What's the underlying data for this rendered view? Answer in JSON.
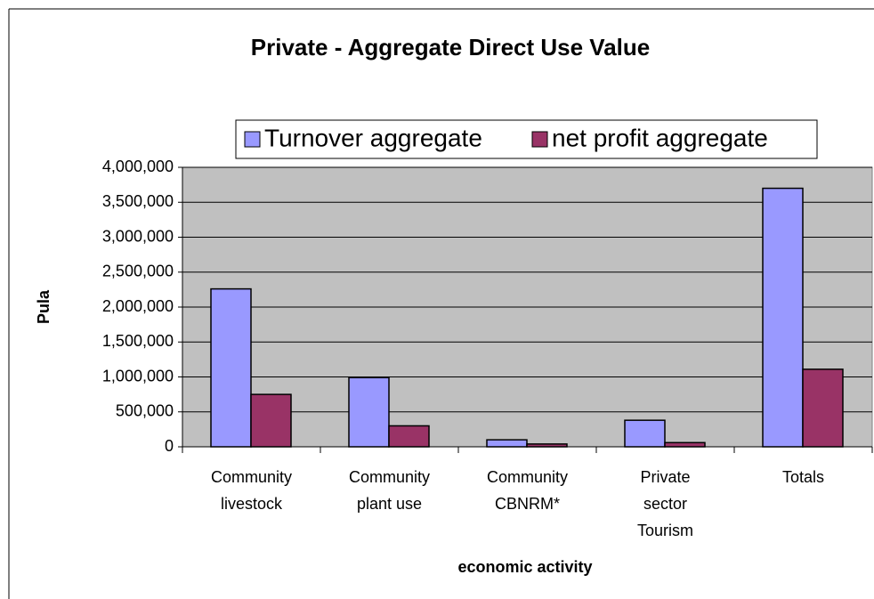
{
  "chart_data": {
    "type": "bar",
    "title": "Private - Aggregate Direct Use Value",
    "xlabel": "economic activity",
    "ylabel": "Pula",
    "categories": [
      [
        "Community",
        "livestock"
      ],
      [
        "Community",
        "plant use"
      ],
      [
        "Community",
        "CBNRM*"
      ],
      [
        "Private",
        "sector",
        "Tourism"
      ],
      [
        "Totals"
      ]
    ],
    "series": [
      {
        "name": "Turnover aggregate",
        "color": "#9999ff",
        "values": [
          2260000,
          990000,
          100000,
          380000,
          3700000
        ]
      },
      {
        "name": "net profit aggregate",
        "color": "#993366",
        "values": [
          750000,
          300000,
          40000,
          60000,
          1110000
        ]
      }
    ],
    "ylim": [
      0,
      4000000
    ],
    "yticks": [
      0,
      {
        "value": 500000,
        "label": "500,000"
      },
      {
        "value": 1000000,
        "label": "1,000,000"
      },
      {
        "value": 1500000,
        "label": "1,500,000"
      },
      {
        "value": 2000000,
        "label": "2,000,000"
      },
      {
        "value": 2500000,
        "label": "2,500,000"
      },
      {
        "value": 3000000,
        "label": "3,000,000"
      },
      {
        "value": 3500000,
        "label": "3,500,000"
      },
      {
        "value": 4000000,
        "label": "4,000,000"
      }
    ],
    "grid": true,
    "legend": "top"
  }
}
